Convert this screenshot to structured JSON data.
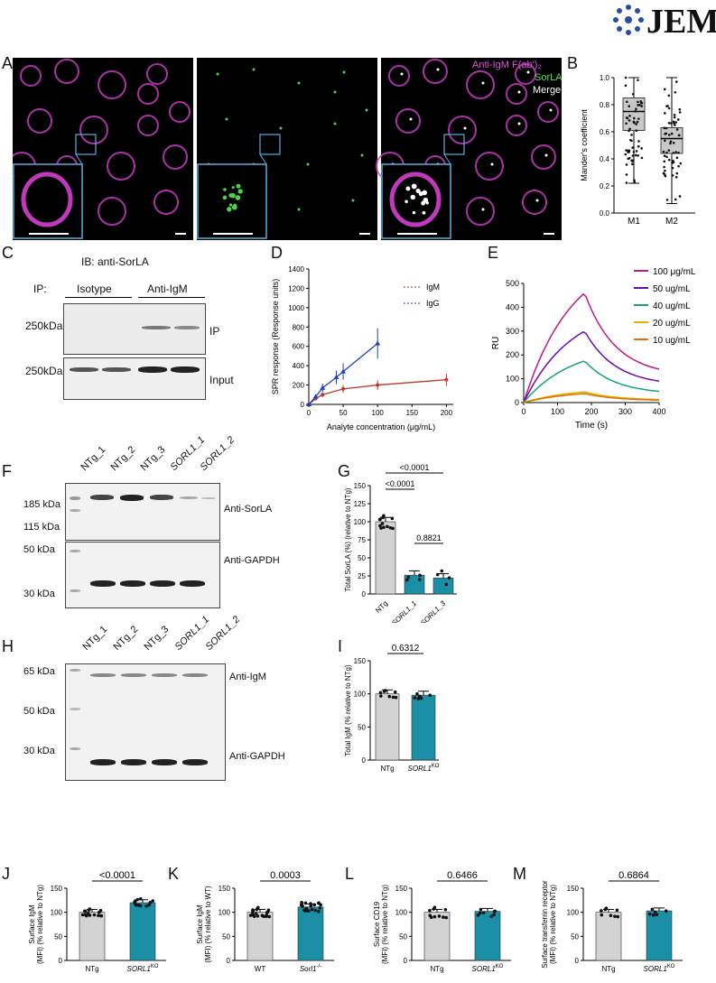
{
  "header": {
    "journal": "JEM"
  },
  "A": {
    "label": "A",
    "legend": [
      "Anti-IgM F(ab')₂",
      "SorLA",
      "Merge"
    ],
    "colors": {
      "magenta": "#d53fd1",
      "green": "#4dd34d"
    }
  },
  "B": {
    "label": "B",
    "ylabel": "Mander's coefficient",
    "yticks": [
      "0.0",
      "0.2",
      "0.4",
      "0.6",
      "0.8",
      "1.0"
    ],
    "chart_data": {
      "type": "box",
      "categories": [
        "M1",
        "M2"
      ],
      "ylim": [
        0,
        1
      ],
      "series": [
        {
          "name": "M1",
          "min": 0.22,
          "q1": 0.61,
          "median": 0.75,
          "q3": 0.85,
          "max": 1.0
        },
        {
          "name": "M2",
          "min": 0.07,
          "q1": 0.44,
          "median": 0.55,
          "q3": 0.63,
          "max": 1.0
        }
      ]
    }
  },
  "C": {
    "label": "C",
    "ib": "IB: anti-SorLA",
    "ip": "IP:",
    "isotype": "Isotype",
    "antiIgM": "Anti-IgM",
    "mw": "250kDa",
    "ip_lbl": "IP",
    "input_lbl": "Input"
  },
  "D": {
    "label": "D",
    "ylabel": "SPR response (Response units)",
    "xlabel": "Analyte concentration (μg/mL)",
    "yticks": [
      "0",
      "200",
      "400",
      "600",
      "800",
      "1000",
      "1200",
      "1400"
    ],
    "xticks": [
      "0",
      "50",
      "100",
      "150",
      "200"
    ],
    "chart_data": {
      "type": "line",
      "xlim": [
        0,
        210
      ],
      "ylim": [
        0,
        1400
      ],
      "series": [
        {
          "name": "IgM",
          "color": "#c0392b",
          "x": [
            0,
            10,
            20,
            50,
            100,
            200
          ],
          "y": [
            0,
            60,
            100,
            160,
            200,
            255
          ]
        },
        {
          "name": "IgG",
          "color": "#1f3fbf",
          "x": [
            0,
            10,
            20,
            40,
            50,
            100
          ],
          "y": [
            0,
            80,
            170,
            280,
            340,
            630
          ]
        }
      ]
    }
  },
  "E": {
    "label": "E",
    "ylabel": "RU",
    "xlabel": "Time (s)",
    "yticks": [
      "0",
      "100",
      "200",
      "300",
      "400",
      "500"
    ],
    "xticks": [
      "0",
      "100",
      "200",
      "300",
      "400"
    ],
    "chart_data": {
      "type": "line",
      "xlim": [
        0,
        400
      ],
      "ylim": [
        0,
        500
      ],
      "series": [
        {
          "name": "100 μg/mL",
          "color": "#c0188f",
          "peak": 460,
          "end": 110
        },
        {
          "name": "50 ug/mL",
          "color": "#6a0dad",
          "peak": 300,
          "end": 70
        },
        {
          "name": "40 ug/mL",
          "color": "#1aa37a",
          "peak": 175,
          "end": 35
        },
        {
          "name": "20 ug/mL",
          "color": "#e3b000",
          "peak": 45,
          "end": 10
        },
        {
          "name": "10 ug/mL",
          "color": "#e07000",
          "peak": 38,
          "end": 8
        }
      ]
    }
  },
  "F": {
    "label": "F",
    "lanes": [
      "NTg_1",
      "NTg_2",
      "NTg_3",
      "SORL1_1",
      "SORL1_2"
    ],
    "mw": [
      "185 kDa",
      "115 kDa",
      "50 kDa",
      "30 kDa"
    ],
    "ab1": "Anti-SorLA",
    "ab2": "Anti-GAPDH"
  },
  "G": {
    "label": "G",
    "ylabel": "Total SorLA (%) (relative to NTg)",
    "yticks": [
      "0",
      "25",
      "50",
      "75",
      "100",
      "125",
      "150"
    ],
    "p": [
      "<0.0001",
      "<0.0001",
      "0.8821"
    ],
    "chart_data": {
      "type": "bar",
      "categories": [
        "NTg",
        "SORL1_1",
        "SORL1_3"
      ],
      "values": [
        100,
        26,
        22
      ],
      "ylim": [
        0,
        150
      ],
      "colors": [
        "#d3d3d3",
        "#1a8fa5",
        "#1a8fa5"
      ]
    }
  },
  "H": {
    "label": "H",
    "lanes": [
      "NTg_1",
      "NTg_2",
      "NTg_3",
      "SORL1_1",
      "SORL1_2"
    ],
    "mw": [
      "65 kDa",
      "50 kDa",
      "30 kDa"
    ],
    "ab1": "Anti-IgM",
    "ab2": "Anti-GAPDH"
  },
  "I": {
    "label": "I",
    "ylabel": "Total IgM (% relative to NTg)",
    "yticks": [
      "0",
      "50",
      "100",
      "150"
    ],
    "p": "0.6312",
    "chart_data": {
      "type": "bar",
      "categories": [
        "NTg",
        "SORL1"
      ],
      "cat_sup": [
        "",
        "KO"
      ],
      "values": [
        100,
        98
      ],
      "ylim": [
        0,
        150
      ],
      "colors": [
        "#d3d3d3",
        "#1a8fa5"
      ]
    }
  },
  "J": {
    "label": "J",
    "ylabel": "Surface IgM (MFI) (% relative to NTg)",
    "yticks": [
      "0",
      "50",
      "100",
      "150"
    ],
    "p": "<0.0001",
    "chart_data": {
      "type": "bar",
      "categories": [
        "NTg",
        "SORL1"
      ],
      "cat_sup": [
        "",
        "KO"
      ],
      "values": [
        100,
        120
      ],
      "ylim": [
        0,
        150
      ],
      "colors": [
        "#d3d3d3",
        "#1a8fa5"
      ]
    }
  },
  "K": {
    "label": "K",
    "ylabel": "Surface IgM (MFI) (% relative to WT)",
    "yticks": [
      "0",
      "50",
      "100",
      "150"
    ],
    "p": "0.0003",
    "chart_data": {
      "type": "bar",
      "categories": [
        "WT",
        "Sorl1"
      ],
      "cat_sup": [
        "",
        "-/-"
      ],
      "values": [
        100,
        111
      ],
      "ylim": [
        0,
        150
      ],
      "colors": [
        "#d3d3d3",
        "#1a8fa5"
      ]
    }
  },
  "L": {
    "label": "L",
    "ylabel": "Surface CD19 (MFI) (% relative to NTg)",
    "yticks": [
      "0",
      "50",
      "100",
      "150"
    ],
    "p": "0.6466",
    "chart_data": {
      "type": "bar",
      "categories": [
        "NTg",
        "SORL1"
      ],
      "cat_sup": [
        "",
        "KO"
      ],
      "values": [
        100,
        102
      ],
      "ylim": [
        0,
        150
      ],
      "colors": [
        "#d3d3d3",
        "#1a8fa5"
      ]
    }
  },
  "M": {
    "label": "M",
    "ylabel": "Surface transferrin receptor (MFI) (% relative to NTg)",
    "yticks": [
      "0",
      "50",
      "100",
      "150"
    ],
    "p": "0.6864",
    "chart_data": {
      "type": "bar",
      "categories": [
        "NTg",
        "SORL1"
      ],
      "cat_sup": [
        "",
        "KO"
      ],
      "values": [
        100,
        103
      ],
      "ylim": [
        0,
        150
      ],
      "colors": [
        "#d3d3d3",
        "#1a8fa5"
      ]
    }
  }
}
